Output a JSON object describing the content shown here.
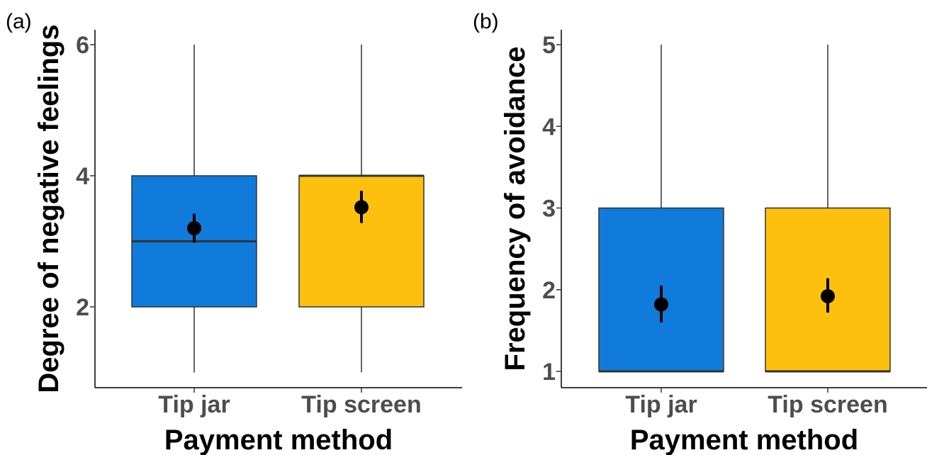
{
  "chart_data": [
    {
      "panel_label": "(a)",
      "type": "box",
      "xlabel": "Payment method",
      "ylabel": "Degree of negative feelings",
      "categories": [
        "Tip jar",
        "Tip screen"
      ],
      "ylim": [
        0.8,
        6.2
      ],
      "yticks": [
        2,
        4,
        6
      ],
      "grid": false,
      "colors": [
        "#107BDB",
        "#FDC00E"
      ],
      "boxes": [
        {
          "whisker_low": 1,
          "q1": 2,
          "median": 3,
          "q3": 4,
          "whisker_high": 6,
          "mean": 3.2,
          "ci_low": 2.98,
          "ci_high": 3.42
        },
        {
          "whisker_low": 1,
          "q1": 2,
          "median": 4,
          "q3": 4,
          "whisker_high": 6,
          "mean": 3.52,
          "ci_low": 3.28,
          "ci_high": 3.77
        }
      ]
    },
    {
      "panel_label": "(b)",
      "type": "box",
      "xlabel": "Payment method",
      "ylabel": "Frequency of avoidance",
      "categories": [
        "Tip jar",
        "Tip screen"
      ],
      "ylim": [
        0.8,
        5.2
      ],
      "yticks": [
        1,
        2,
        3,
        4,
        5
      ],
      "grid": false,
      "colors": [
        "#107BDB",
        "#FDC00E"
      ],
      "boxes": [
        {
          "whisker_low": 1,
          "q1": 1,
          "median": 1,
          "q3": 3,
          "whisker_high": 5,
          "mean": 1.82,
          "ci_low": 1.6,
          "ci_high": 2.05
        },
        {
          "whisker_low": 1,
          "q1": 1,
          "median": 1,
          "q3": 3,
          "whisker_high": 5,
          "mean": 1.92,
          "ci_low": 1.72,
          "ci_high": 2.14
        }
      ]
    }
  ]
}
